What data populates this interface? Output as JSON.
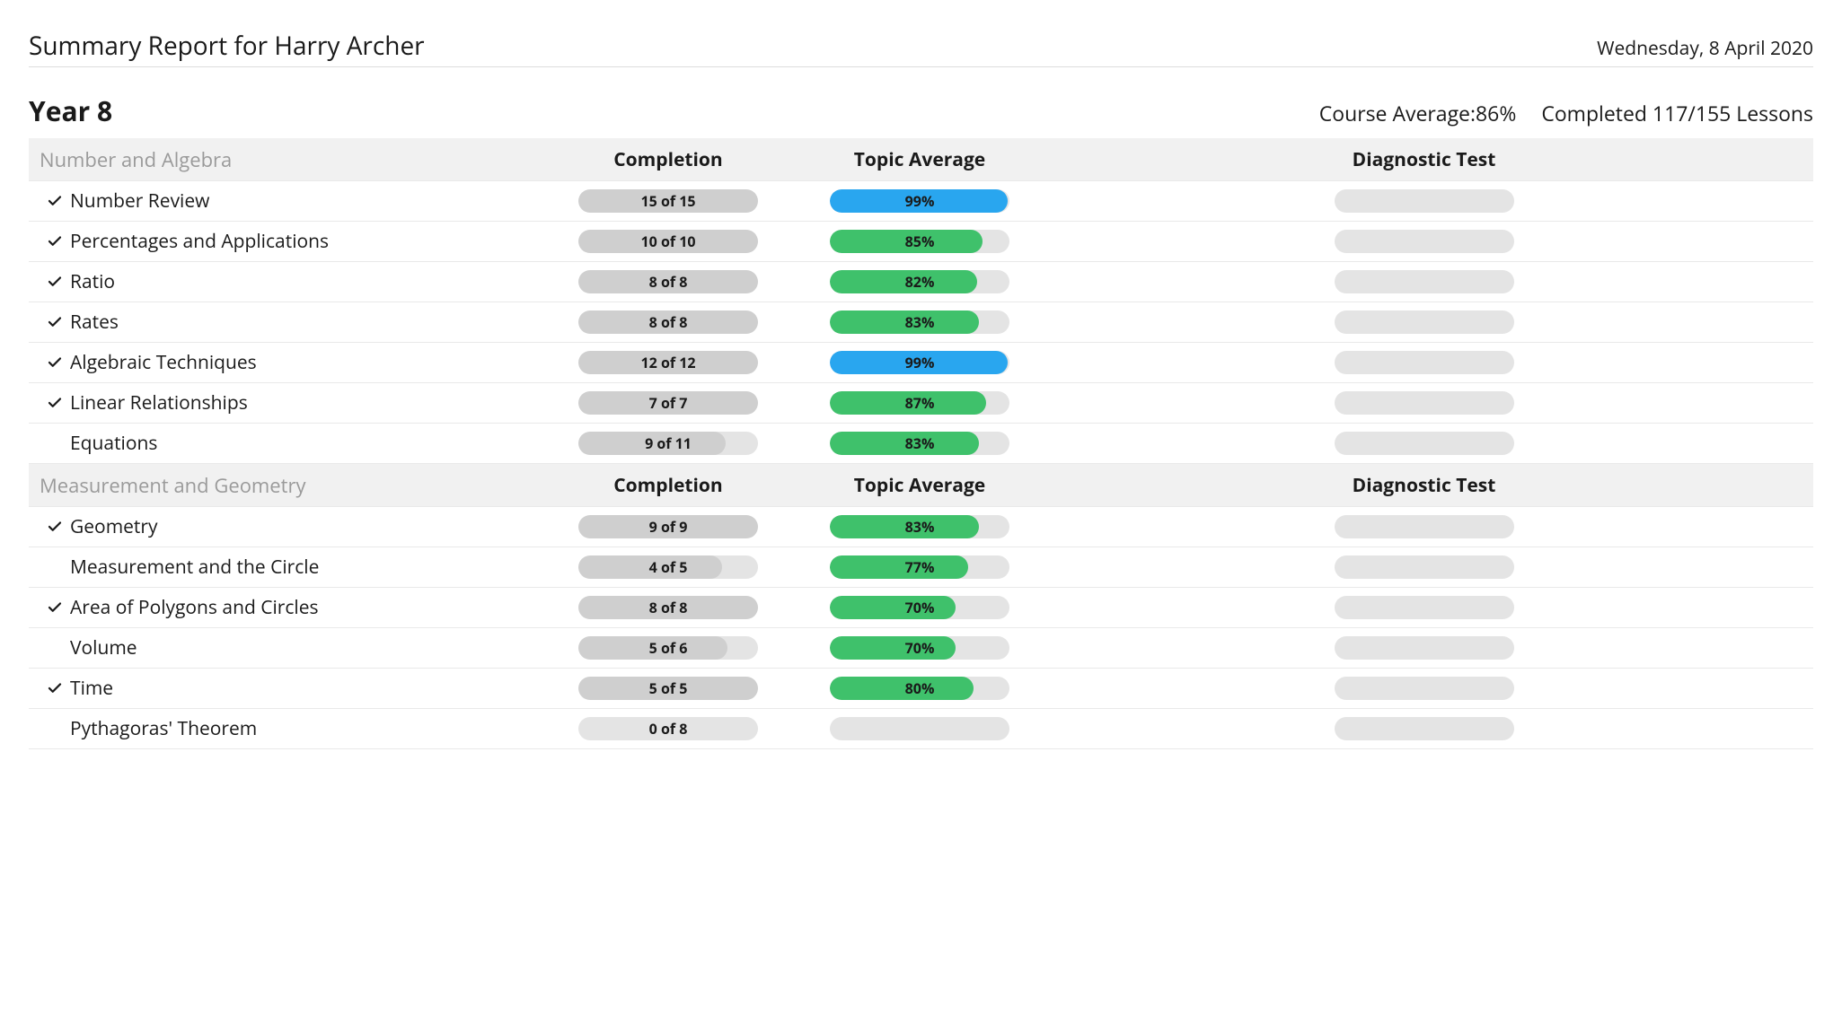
{
  "colors": {
    "pill_track": "#e4e4e4",
    "pill_completion_fill": "#cfcfcf",
    "pill_blue": "#29a6ef",
    "pill_green": "#3fc16b",
    "text": "#1a1a1a",
    "muted": "#9a9a9a",
    "section_bg": "#f1f1f1",
    "row_border": "#e9e9e9"
  },
  "header": {
    "title": "Summary Report for Harry Archer",
    "date": "Wednesday, 8 April 2020"
  },
  "year": {
    "title": "Year 8",
    "course_average_label": "Course Average:",
    "course_average_value": "86%",
    "completed_text": "Completed 117/155 Lessons"
  },
  "column_headers": {
    "completion": "Completion",
    "average": "Topic Average",
    "diagnostic": "Diagnostic Test"
  },
  "sections": [
    {
      "name": "Number and Algebra",
      "rows": [
        {
          "done": true,
          "name": "Number Review",
          "completion_label": "15 of 15",
          "completion_pct": 100,
          "avg_label": "99%",
          "avg_pct": 99,
          "avg_color": "#29a6ef"
        },
        {
          "done": true,
          "name": "Percentages and Applications",
          "completion_label": "10 of 10",
          "completion_pct": 100,
          "avg_label": "85%",
          "avg_pct": 85,
          "avg_color": "#3fc16b"
        },
        {
          "done": true,
          "name": "Ratio",
          "completion_label": "8 of 8",
          "completion_pct": 100,
          "avg_label": "82%",
          "avg_pct": 82,
          "avg_color": "#3fc16b"
        },
        {
          "done": true,
          "name": "Rates",
          "completion_label": "8 of 8",
          "completion_pct": 100,
          "avg_label": "83%",
          "avg_pct": 83,
          "avg_color": "#3fc16b"
        },
        {
          "done": true,
          "name": "Algebraic Techniques",
          "completion_label": "12 of 12",
          "completion_pct": 100,
          "avg_label": "99%",
          "avg_pct": 99,
          "avg_color": "#29a6ef"
        },
        {
          "done": true,
          "name": "Linear Relationships",
          "completion_label": "7 of 7",
          "completion_pct": 100,
          "avg_label": "87%",
          "avg_pct": 87,
          "avg_color": "#3fc16b"
        },
        {
          "done": false,
          "name": "Equations",
          "completion_label": "9 of 11",
          "completion_pct": 82,
          "avg_label": "83%",
          "avg_pct": 83,
          "avg_color": "#3fc16b"
        }
      ]
    },
    {
      "name": "Measurement and Geometry",
      "rows": [
        {
          "done": true,
          "name": "Geometry",
          "completion_label": "9 of 9",
          "completion_pct": 100,
          "avg_label": "83%",
          "avg_pct": 83,
          "avg_color": "#3fc16b"
        },
        {
          "done": false,
          "name": "Measurement and the Circle",
          "completion_label": "4 of 5",
          "completion_pct": 80,
          "avg_label": "77%",
          "avg_pct": 77,
          "avg_color": "#3fc16b"
        },
        {
          "done": true,
          "name": "Area of Polygons and Circles",
          "completion_label": "8 of 8",
          "completion_pct": 100,
          "avg_label": "70%",
          "avg_pct": 70,
          "avg_color": "#3fc16b"
        },
        {
          "done": false,
          "name": "Volume",
          "completion_label": "5 of 6",
          "completion_pct": 83,
          "avg_label": "70%",
          "avg_pct": 70,
          "avg_color": "#3fc16b"
        },
        {
          "done": true,
          "name": "Time",
          "completion_label": "5 of 5",
          "completion_pct": 100,
          "avg_label": "80%",
          "avg_pct": 80,
          "avg_color": "#3fc16b"
        },
        {
          "done": false,
          "name": "Pythagoras' Theorem",
          "completion_label": "0 of 8",
          "completion_pct": 0,
          "avg_label": "",
          "avg_pct": 0,
          "avg_color": "#3fc16b"
        }
      ]
    }
  ]
}
